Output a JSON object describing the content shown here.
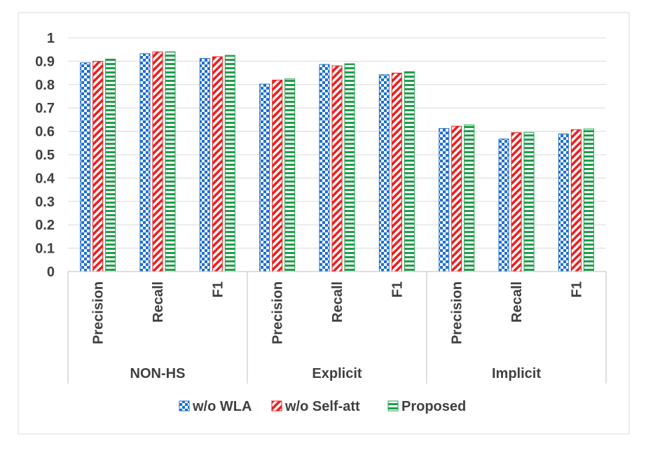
{
  "chart_data": {
    "type": "bar",
    "title": "",
    "xlabel": "",
    "ylabel": "",
    "ylim": [
      0,
      1
    ],
    "yticks": [
      "0",
      "0.1",
      "0.2",
      "0.3",
      "0.4",
      "0.5",
      "0.6",
      "0.7",
      "0.8",
      "0.9",
      "1"
    ],
    "grid": true,
    "legend_position": "bottom",
    "groups": [
      {
        "label": "NON-HS",
        "categories": [
          "Precision",
          "Recall",
          "F1"
        ]
      },
      {
        "label": "Explicit",
        "categories": [
          "Precision",
          "Recall",
          "F1"
        ]
      },
      {
        "label": "Implicit",
        "categories": [
          "Precision",
          "Recall",
          "F1"
        ]
      }
    ],
    "categories": [
      "Precision",
      "Recall",
      "F1",
      "Precision",
      "Recall",
      "F1",
      "Precision",
      "Recall",
      "F1"
    ],
    "series": [
      {
        "name": "w/o WLA",
        "color": "#1f6fcf",
        "pattern": "checkerboard",
        "values": [
          0.893,
          0.932,
          0.912,
          0.802,
          0.886,
          0.842,
          0.612,
          0.567,
          0.589
        ]
      },
      {
        "name": "w/o Self-att",
        "color": "#ee1c1c",
        "pattern": "diagonal-stripes",
        "values": [
          0.899,
          0.94,
          0.919,
          0.819,
          0.88,
          0.849,
          0.622,
          0.594,
          0.607
        ]
      },
      {
        "name": "Proposed",
        "color": "#1e9e4a",
        "pattern": "horizontal-stripes",
        "values": [
          0.909,
          0.94,
          0.925,
          0.824,
          0.889,
          0.855,
          0.627,
          0.595,
          0.61
        ]
      }
    ]
  }
}
